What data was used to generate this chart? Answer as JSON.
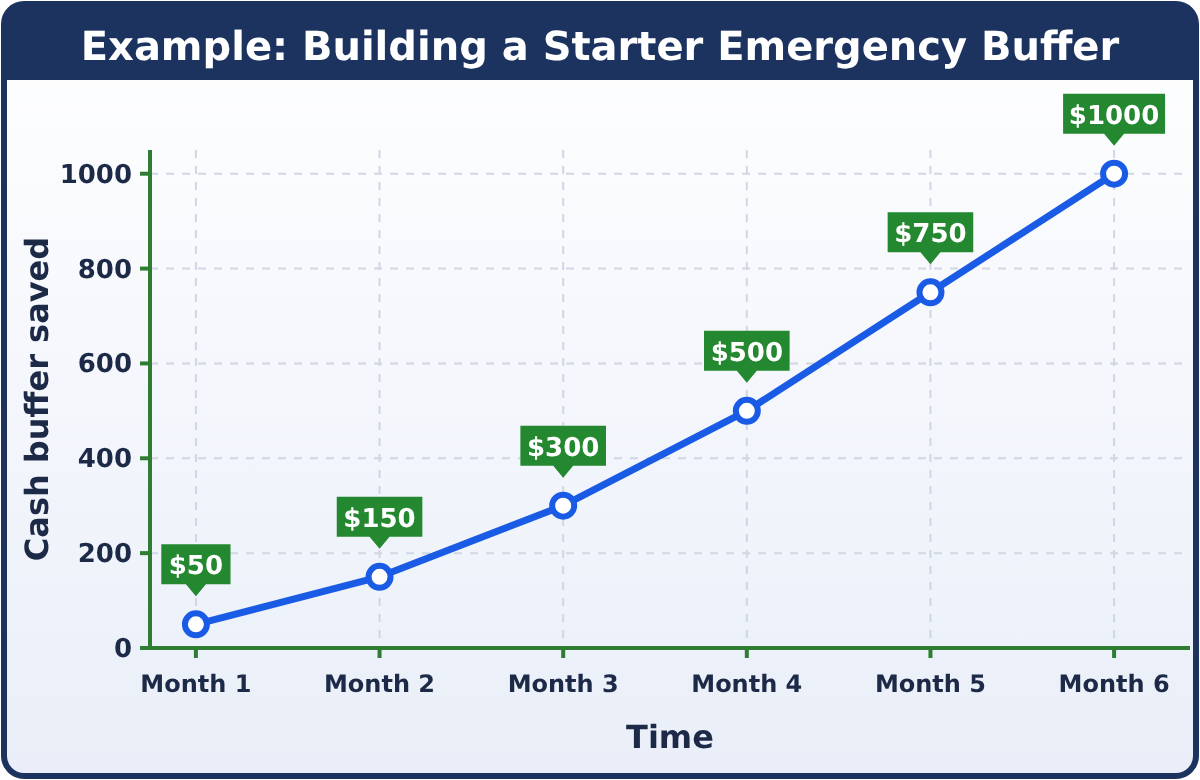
{
  "chart_data": {
    "type": "line",
    "title": "Example: Building a Starter Emergency Buffer",
    "xlabel": "Time",
    "ylabel": "Cash buffer saved",
    "categories": [
      "Month 1",
      "Month 2",
      "Month 3",
      "Month 4",
      "Month 5",
      "Month 6"
    ],
    "series": [
      {
        "color": "#1a5be6",
        "values": [
          50,
          150,
          300,
          500,
          750,
          1000
        ],
        "value_labels": [
          "$50",
          "$150",
          "$300",
          "$500",
          "$750",
          "$1000"
        ]
      }
    ],
    "ylim": [
      0,
      1050
    ],
    "yticks": [
      0,
      200,
      400,
      600,
      800,
      1000
    ],
    "grid": true,
    "marker": "circle",
    "line_style": "solid"
  }
}
